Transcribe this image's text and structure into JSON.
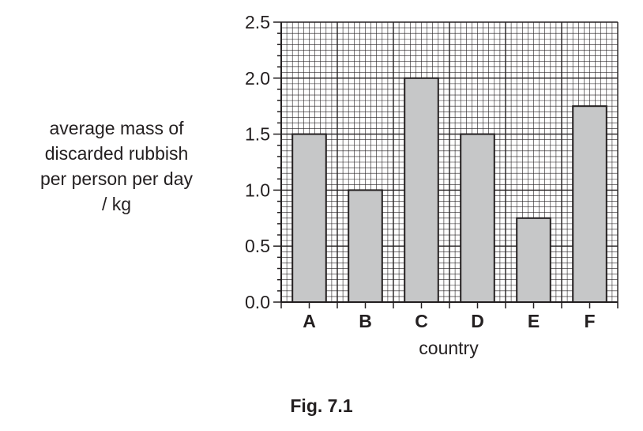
{
  "chart_data": {
    "type": "bar",
    "categories": [
      "A",
      "B",
      "C",
      "D",
      "E",
      "F"
    ],
    "values": [
      1.5,
      1.0,
      2.0,
      1.5,
      0.75,
      1.75
    ],
    "ylabel_lines": [
      "average mass of",
      "discarded rubbish",
      "per person per day",
      "/ kg"
    ],
    "xlabel": "country",
    "ylim": [
      0,
      2.5
    ],
    "yticks": [
      "0.0",
      "0.5",
      "1.0",
      "1.5",
      "2.0",
      "2.5"
    ],
    "grid": true,
    "bar_color": "#c6c7c8"
  },
  "caption": "Fig. 7.1"
}
